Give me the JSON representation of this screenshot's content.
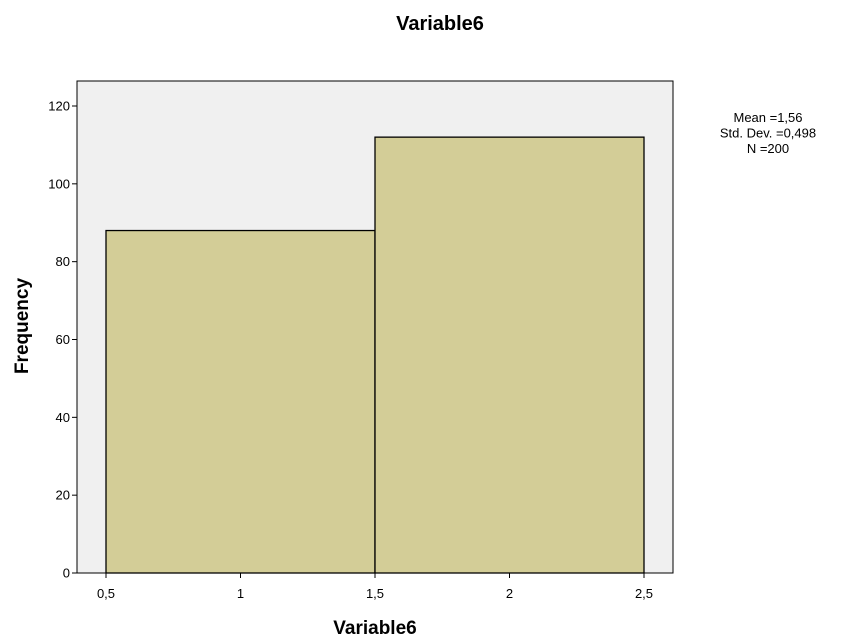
{
  "chart_data": {
    "type": "bar",
    "title": "Variable6",
    "xlabel": "Variable6",
    "ylabel": "Frequency",
    "bins": [
      {
        "start": 0.5,
        "end": 1.5,
        "value": 88
      },
      {
        "start": 1.5,
        "end": 2.5,
        "value": 112
      }
    ],
    "xlim": [
      0.39,
      2.6
    ],
    "ylim": [
      0,
      120
    ],
    "x_ticks": [
      0.5,
      1,
      1.5,
      2,
      2.5
    ],
    "x_tick_labels": [
      "0,5",
      "1",
      "1,5",
      "2",
      "2,5"
    ],
    "y_ticks": [
      0,
      20,
      40,
      60,
      80,
      100,
      120
    ],
    "y_tick_labels": [
      "0",
      "20",
      "40",
      "60",
      "80",
      "100",
      "120"
    ],
    "grid": false,
    "legend": "none",
    "stats": [
      "Mean =1,56",
      "Std. Dev. =0,498",
      "N =200"
    ],
    "colors": {
      "bar_fill": "#d3cd97",
      "bar_stroke": "#000000",
      "plot_background": "#f0f0f0"
    }
  }
}
